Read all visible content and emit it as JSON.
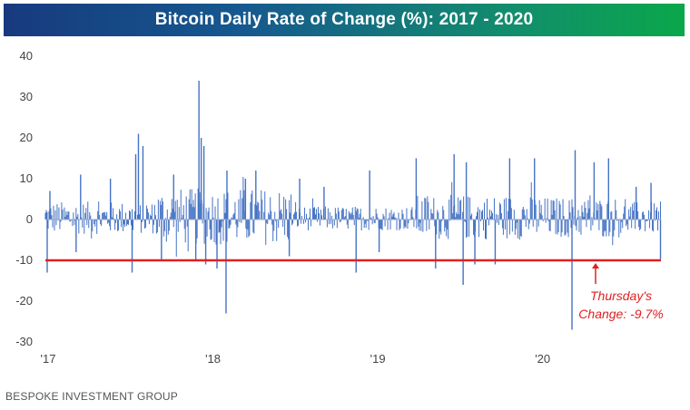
{
  "chart_data": {
    "type": "bar",
    "title": "Bitcoin Daily Rate of Change (%): 2017 - 2020",
    "xlabel": "",
    "ylabel": "",
    "ylim": [
      -30,
      40
    ],
    "yticks": [
      40,
      30,
      20,
      10,
      0,
      -10,
      -20,
      -30
    ],
    "xrange": [
      "2017-01-01",
      "2020-09-25"
    ],
    "xtick_labels": [
      {
        "label": "'17",
        "date": "2017-01-01"
      },
      {
        "label": "'18",
        "date": "2018-01-01"
      },
      {
        "label": "'19",
        "date": "2019-01-01"
      },
      {
        "label": "'20",
        "date": "2020-01-01"
      }
    ],
    "grid": false,
    "series": [
      {
        "color": "#4472c4",
        "points": [
          {
            "x": "2017-01-05",
            "y": -13
          },
          {
            "x": "2017-01-11",
            "y": 7
          },
          {
            "x": "2017-03-10",
            "y": -8
          },
          {
            "x": "2017-03-20",
            "y": 11
          },
          {
            "x": "2017-05-25",
            "y": 10
          },
          {
            "x": "2017-07-12",
            "y": -13
          },
          {
            "x": "2017-07-20",
            "y": 16
          },
          {
            "x": "2017-07-26",
            "y": 21
          },
          {
            "x": "2017-08-05",
            "y": 18
          },
          {
            "x": "2017-09-15",
            "y": -10
          },
          {
            "x": "2017-10-12",
            "y": 11
          },
          {
            "x": "2017-11-30",
            "y": -10
          },
          {
            "x": "2017-12-07",
            "y": 34
          },
          {
            "x": "2017-12-12",
            "y": 20
          },
          {
            "x": "2017-12-18",
            "y": 18
          },
          {
            "x": "2017-12-22",
            "y": -11
          },
          {
            "x": "2018-01-16",
            "y": -12
          },
          {
            "x": "2018-02-05",
            "y": -23
          },
          {
            "x": "2018-02-07",
            "y": 12
          },
          {
            "x": "2018-03-20",
            "y": 10
          },
          {
            "x": "2018-04-12",
            "y": 12
          },
          {
            "x": "2018-06-25",
            "y": -9
          },
          {
            "x": "2018-07-18",
            "y": 10
          },
          {
            "x": "2018-09-10",
            "y": 8
          },
          {
            "x": "2018-11-20",
            "y": -13
          },
          {
            "x": "2018-12-20",
            "y": 12
          },
          {
            "x": "2019-01-10",
            "y": -8
          },
          {
            "x": "2019-04-02",
            "y": 15
          },
          {
            "x": "2019-05-15",
            "y": -12
          },
          {
            "x": "2019-06-25",
            "y": 16
          },
          {
            "x": "2019-07-15",
            "y": -16
          },
          {
            "x": "2019-07-22",
            "y": 14
          },
          {
            "x": "2019-08-10",
            "y": -11
          },
          {
            "x": "2019-09-24",
            "y": -11
          },
          {
            "x": "2019-10-26",
            "y": 15
          },
          {
            "x": "2019-12-20",
            "y": 15
          },
          {
            "x": "2020-03-12",
            "y": -27
          },
          {
            "x": "2020-03-19",
            "y": 17
          },
          {
            "x": "2020-04-30",
            "y": 14
          },
          {
            "x": "2020-06-01",
            "y": 15
          },
          {
            "x": "2020-08-01",
            "y": 8
          },
          {
            "x": "2020-09-03",
            "y": 9
          },
          {
            "x": "2020-09-24",
            "y": -9.7
          }
        ]
      }
    ],
    "reference_line": {
      "y": -10,
      "color": "#e02020"
    },
    "annotation": {
      "line1": "Thursday's",
      "line2": "Change: -9.7%",
      "x": "2020-09-24",
      "color": "#e02020"
    }
  },
  "footer": {
    "source": "BESPOKE INVESTMENT GROUP"
  }
}
